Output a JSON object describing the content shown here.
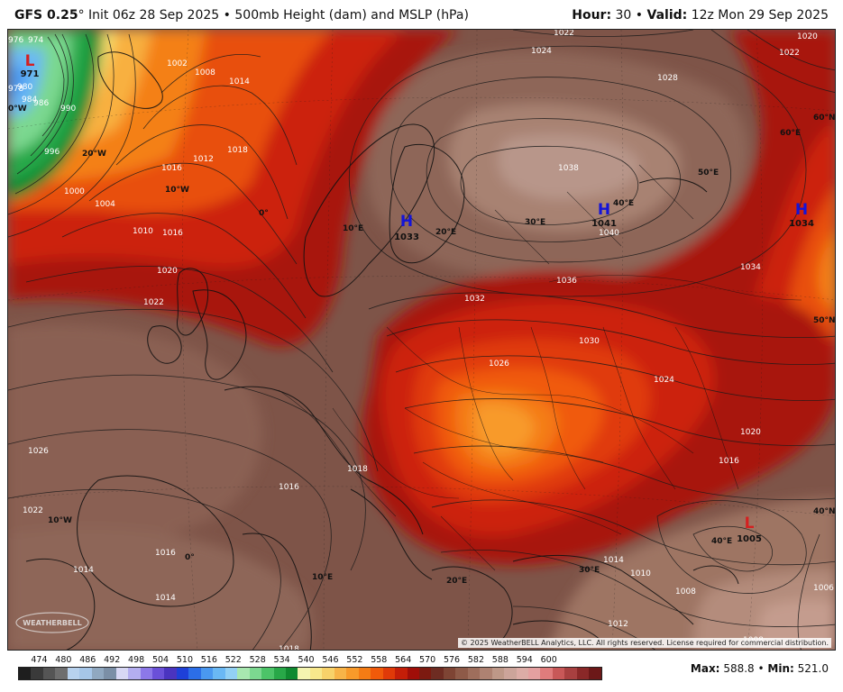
{
  "header": {
    "model": "GFS 0.25",
    "degree": "°",
    "init": "Init 06z 28 Sep 2025",
    "separator": "•",
    "field": "500mb Height (dam) and MSLP (hPa)",
    "hour_label": "Hour:",
    "hour_value": "30",
    "valid_label": "Valid:",
    "valid_value": "12z Mon 29 Sep 2025"
  },
  "map": {
    "pressure_centers": [
      {
        "type": "L",
        "value": "971",
        "color": "#d42020"
      },
      {
        "type": "H",
        "value": "1033",
        "color": "#1414d8"
      },
      {
        "type": "H",
        "value": "1041",
        "color": "#1414d8"
      },
      {
        "type": "H",
        "value": "1034",
        "color": "#1414d8"
      },
      {
        "type": "L",
        "value": "1005",
        "color": "#d42020"
      }
    ],
    "isobar_labels": [
      "1022",
      "1024",
      "1028",
      "1020",
      "1022",
      "1038",
      "1036",
      "1032",
      "1030",
      "1026",
      "1024",
      "1020",
      "1016",
      "1014",
      "1010",
      "1008",
      "1006",
      "1012",
      "1034",
      "1016",
      "1018",
      "1014",
      "1010",
      "1008",
      "1002",
      "1000",
      "1004",
      "1012",
      "1016",
      "1020",
      "1022",
      "1026",
      "1022",
      "1018",
      "1016",
      "1014",
      "1014",
      "1016",
      "1018",
      "1040",
      "1008",
      "996",
      "990",
      "986",
      "980",
      "976",
      "974",
      "978",
      "984"
    ],
    "grid_labels": [
      "60°N",
      "50°N",
      "40°N",
      "0°W",
      "20°W",
      "10°W",
      "0°",
      "10°E",
      "20°E",
      "30°E",
      "40°E",
      "50°E",
      "60°E",
      "10°W",
      "0°",
      "10°E",
      "20°E",
      "30°E",
      "40°E"
    ],
    "copyright": "© 2025 WeatherBELL Analytics, LLC. All rights reserved. License required for commercial distribution.",
    "logo_text": "WEATHERBELL"
  },
  "legend": {
    "labels": [
      "474",
      "480",
      "486",
      "492",
      "498",
      "504",
      "510",
      "516",
      "522",
      "528",
      "534",
      "540",
      "546",
      "552",
      "558",
      "564",
      "570",
      "576",
      "582",
      "588",
      "594",
      "600"
    ],
    "colors": [
      "#1e1e1e",
      "#3a3a3a",
      "#555555",
      "#6e6e6e",
      "#b8d2ee",
      "#a6c6e8",
      "#90a8c0",
      "#7b8fa6",
      "#d8d8f4",
      "#b4aef0",
      "#8c78e8",
      "#6a50d8",
      "#4a34c0",
      "#1e40d8",
      "#2c6ee8",
      "#4a98f0",
      "#6ab8f4",
      "#92d0f4",
      "#a8e8b0",
      "#7cd890",
      "#4cc468",
      "#28a848",
      "#108a30",
      "#f4f4b0",
      "#f8e88c",
      "#f8d26a",
      "#f8b448",
      "#f89a2a",
      "#f47c14",
      "#f05a0a",
      "#e03a08",
      "#c41e08",
      "#a00e08",
      "#7c1a10",
      "#6e2c22",
      "#7e4434",
      "#8e5a48",
      "#9e6e5c",
      "#ae8272",
      "#be9888",
      "#cca49a",
      "#dcaca6",
      "#e4a0a0",
      "#e07c7c",
      "#c85858",
      "#a84040",
      "#8a2828",
      "#6c1818"
    ],
    "max_label": "Max:",
    "max_value": "588.8",
    "min_label": "Min:",
    "min_value": "521.0"
  }
}
